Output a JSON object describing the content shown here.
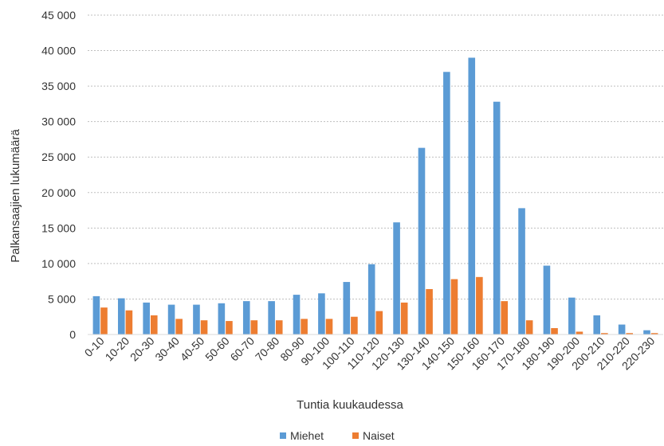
{
  "chart_data": {
    "type": "bar",
    "title": "",
    "xlabel": "Tuntia kuukaudessa",
    "ylabel": "Palkansaajien lukumäärä",
    "ylim": [
      0,
      45000
    ],
    "yticks": [
      0,
      5000,
      10000,
      15000,
      20000,
      25000,
      30000,
      35000,
      40000,
      45000
    ],
    "ytick_labels": [
      "0",
      "5 000",
      "10 000",
      "15 000",
      "20 000",
      "25 000",
      "30 000",
      "35 000",
      "40 000",
      "45 000"
    ],
    "grid": true,
    "legend_position": "bottom",
    "categories": [
      "0-10",
      "10-20",
      "20-30",
      "30-40",
      "40-50",
      "50-60",
      "60-70",
      "70-80",
      "80-90",
      "90-100",
      "100-110",
      "110-120",
      "120-130",
      "130-140",
      "140-150",
      "150-160",
      "160-170",
      "170-180",
      "180-190",
      "190-200",
      "200-210",
      "210-220",
      "220-230"
    ],
    "series": [
      {
        "name": "Miehet",
        "color": "#5b9bd5",
        "values": [
          5400,
          5100,
          4500,
          4200,
          4200,
          4400,
          4700,
          4700,
          5600,
          5800,
          7400,
          9900,
          15800,
          26300,
          37000,
          39000,
          32800,
          17800,
          9700,
          5200,
          2700,
          1400,
          600
        ]
      },
      {
        "name": "Naiset",
        "color": "#ed7d31",
        "values": [
          3800,
          3400,
          2700,
          2200,
          2000,
          1900,
          2000,
          2000,
          2200,
          2200,
          2500,
          3300,
          4500,
          6400,
          7800,
          8100,
          4700,
          2000,
          900,
          400,
          200,
          200,
          200
        ]
      }
    ]
  }
}
